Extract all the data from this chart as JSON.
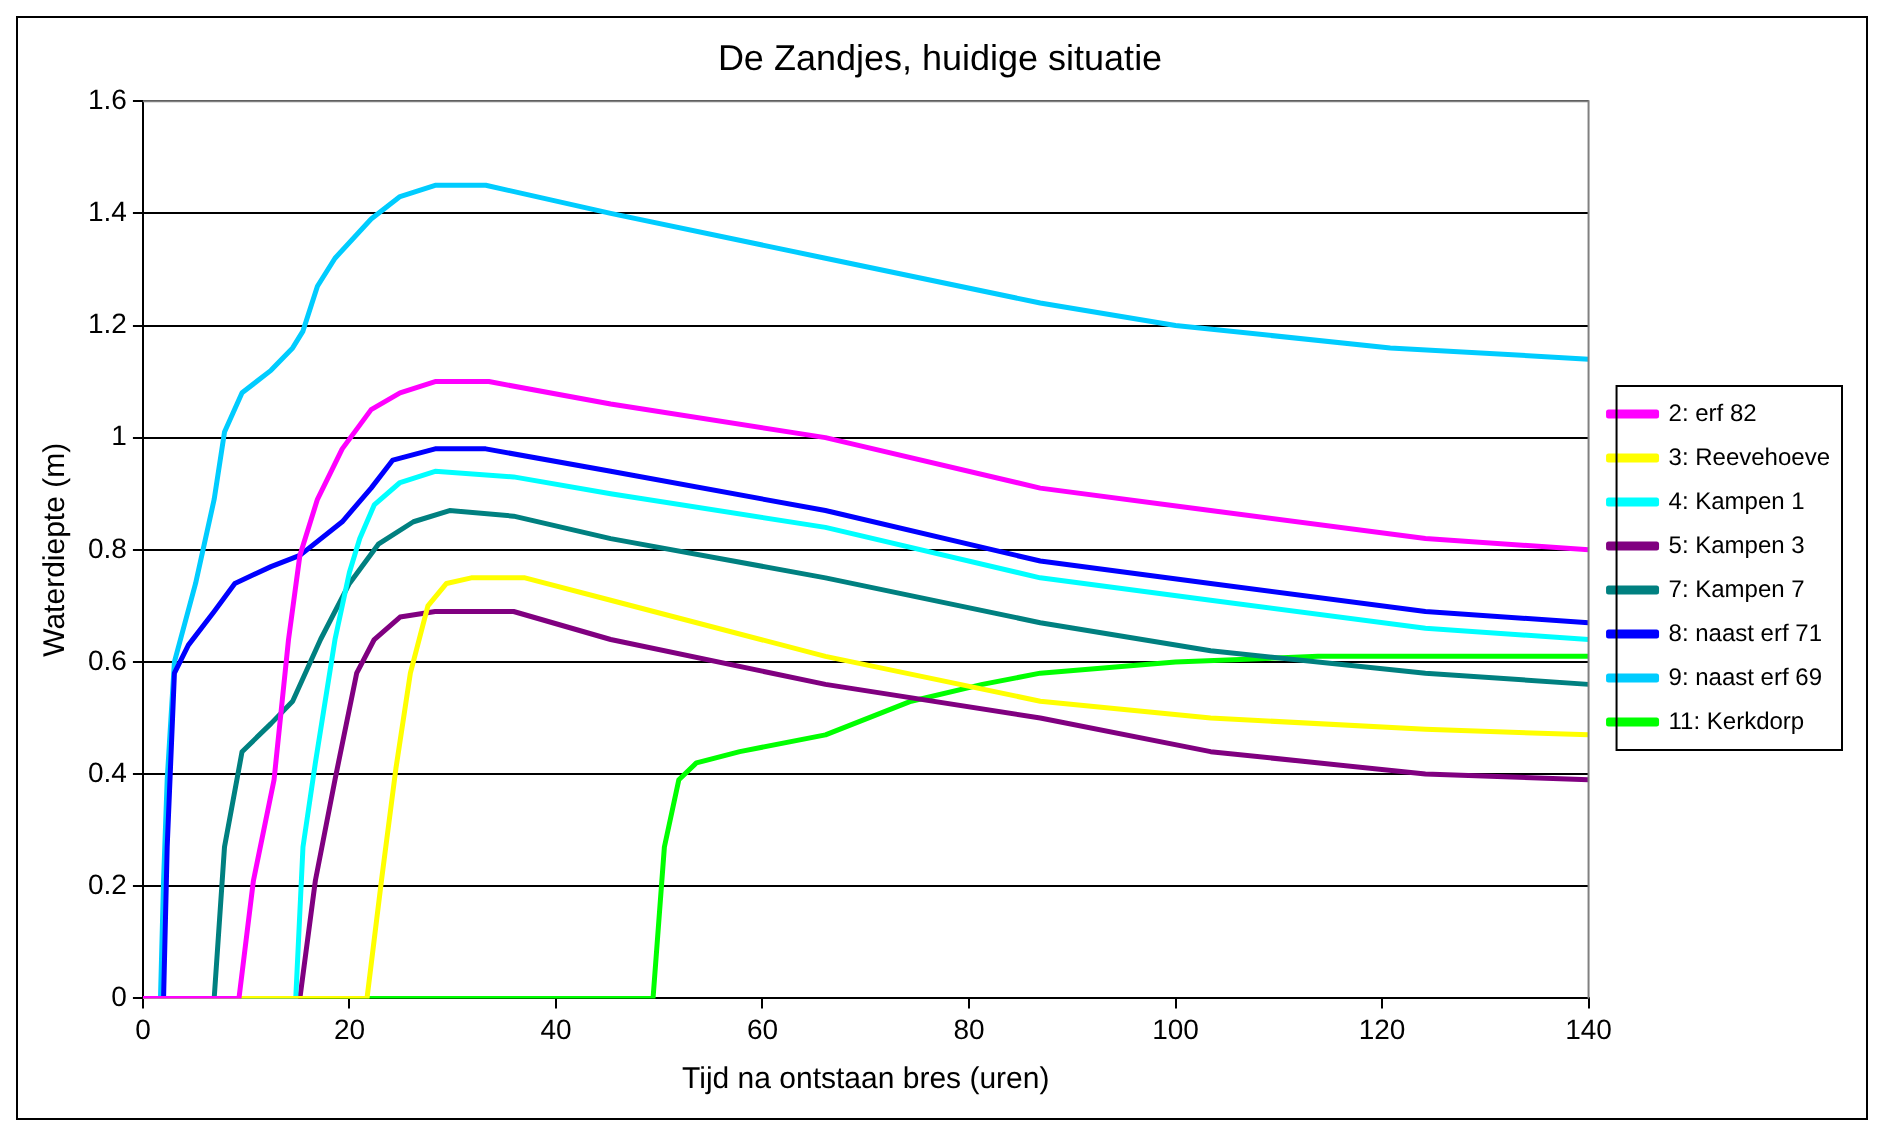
{
  "chart_data": {
    "type": "line",
    "title": "De Zandjes, huidige situatie",
    "xlabel": "Tijd na ontstaan bres (uren)",
    "ylabel": "Waterdiepte (m)",
    "xlim": [
      0,
      140
    ],
    "xticks": [
      0,
      20,
      40,
      60,
      80,
      100,
      120,
      140
    ],
    "ylim": [
      0,
      1.6
    ],
    "yticks": [
      0,
      0.2,
      0.4,
      0.6,
      0.8,
      1,
      1.2,
      1.4,
      1.6
    ],
    "grid": "y",
    "legend": "right",
    "series": [
      {
        "name": "2: erf 82",
        "color": "#ff00ff",
        "x": [
          0,
          9.3,
          10.7,
          12.7,
          14.1,
          15.2,
          16.9,
          19.3,
          22.1,
          24.9,
          28.3,
          33.5,
          45.3,
          66.1,
          86.9,
          103.4,
          124.2,
          140
        ],
        "values": [
          0,
          0,
          0.21,
          0.39,
          0.64,
          0.79,
          0.89,
          0.98,
          1.05,
          1.08,
          1.1,
          1.1,
          1.06,
          1.0,
          0.91,
          0.87,
          0.82,
          0.8
        ]
      },
      {
        "name": "3: Reevehoeve",
        "color": "#ffff00",
        "x": [
          0,
          21.7,
          23.1,
          24.5,
          25.9,
          27.6,
          29.4,
          31.8,
          37,
          45.3,
          66.1,
          86.9,
          103.4,
          124.2,
          140
        ],
        "values": [
          0,
          0,
          0.21,
          0.41,
          0.58,
          0.7,
          0.74,
          0.75,
          0.75,
          0.71,
          0.61,
          0.53,
          0.5,
          0.48,
          0.47
        ]
      },
      {
        "name": "4: Kampen 1",
        "color": "#00ffff",
        "x": [
          0,
          14.8,
          15.5,
          16.7,
          18.6,
          20,
          21,
          22.4,
          24.9,
          28.3,
          35.9,
          45.3,
          66.1,
          86.9,
          103.4,
          124.2,
          140
        ],
        "values": [
          0,
          0,
          0.27,
          0.42,
          0.64,
          0.76,
          0.82,
          0.88,
          0.92,
          0.94,
          0.93,
          0.9,
          0.84,
          0.75,
          0.71,
          0.66,
          0.64
        ]
      },
      {
        "name": "5: Kampen 3",
        "color": "#800080",
        "x": [
          0,
          15.2,
          16.7,
          18.6,
          20.7,
          22.4,
          24.9,
          28.3,
          35.9,
          45.3,
          66.1,
          86.9,
          103.4,
          124.2,
          140
        ],
        "values": [
          0,
          0,
          0.21,
          0.39,
          0.58,
          0.64,
          0.68,
          0.69,
          0.69,
          0.64,
          0.56,
          0.5,
          0.44,
          0.4,
          0.39
        ]
      },
      {
        "name": "7: Kampen 7",
        "color": "#008080",
        "x": [
          0,
          6.9,
          7.9,
          9.6,
          12.4,
          14.5,
          17.2,
          20,
          22.8,
          26.2,
          29.7,
          35.9,
          45.3,
          66.1,
          86.9,
          103.4,
          124.2,
          140
        ],
        "values": [
          0,
          0,
          0.27,
          0.44,
          0.49,
          0.53,
          0.64,
          0.74,
          0.81,
          0.85,
          0.87,
          0.86,
          0.82,
          0.75,
          0.67,
          0.62,
          0.58,
          0.56
        ]
      },
      {
        "name": "8: naast erf 71",
        "color": "#0000ff",
        "x": [
          0,
          2,
          2.35,
          3.05,
          4.4,
          6.9,
          8.9,
          12.4,
          15.2,
          19.3,
          22.1,
          24.2,
          28.3,
          33.2,
          45.3,
          66.1,
          86.9,
          103.4,
          124.2,
          140
        ],
        "values": [
          0,
          0,
          0.27,
          0.58,
          0.63,
          0.69,
          0.74,
          0.77,
          0.79,
          0.85,
          0.91,
          0.96,
          0.98,
          0.98,
          0.94,
          0.87,
          0.78,
          0.74,
          0.69,
          0.67
        ]
      },
      {
        "name": "9: naast erf 69",
        "color": "#00ccff",
        "x": [
          0,
          1.7,
          2,
          2.35,
          3.05,
          5.1,
          6.9,
          7.9,
          9.6,
          12.4,
          14.5,
          15.5,
          16.9,
          18.6,
          22.1,
          24.9,
          28.3,
          33.2,
          45.3,
          66.1,
          86.9,
          100,
          120.8,
          140
        ],
        "values": [
          0,
          0,
          0.21,
          0.39,
          0.6,
          0.74,
          0.89,
          1.01,
          1.08,
          1.12,
          1.16,
          1.19,
          1.27,
          1.32,
          1.39,
          1.43,
          1.45,
          1.45,
          1.4,
          1.32,
          1.24,
          1.2,
          1.16,
          1.14
        ]
      },
      {
        "name": "11: Kerkdorp",
        "color": "#00ff00",
        "x": [
          0,
          49.4,
          50.5,
          51.9,
          53.6,
          57.8,
          66.1,
          74.4,
          81.3,
          86.9,
          100,
          113.8,
          140
        ],
        "values": [
          0,
          0,
          0.27,
          0.39,
          0.42,
          0.44,
          0.47,
          0.53,
          0.56,
          0.58,
          0.6,
          0.61,
          0.61
        ]
      }
    ]
  }
}
